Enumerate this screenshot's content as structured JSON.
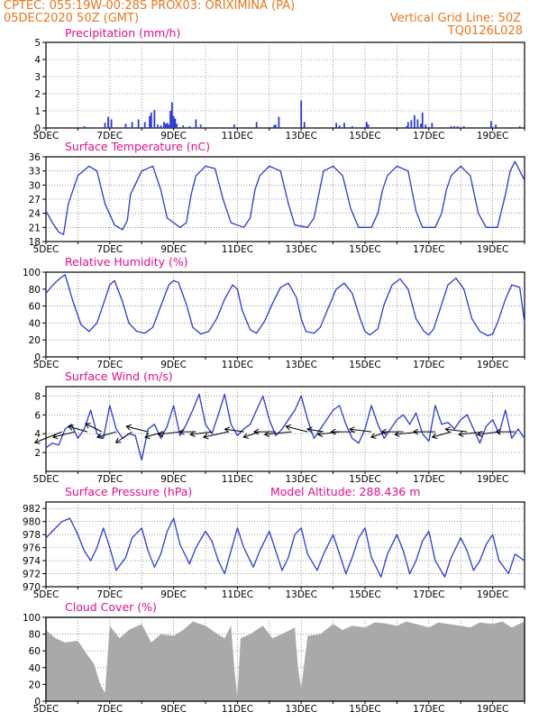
{
  "header": {
    "left_line1": "CPTEC:   055:19W-00:28S   PROX03: ORIXIMINA (PA)",
    "left_line2": "05DEC2020 50Z (GMT)",
    "right_line2": "Vertical Grid Line: 50Z",
    "right_line3": "TQ0126L028"
  },
  "colors": {
    "header": "#e8761c",
    "title": "#e0108c",
    "series": "#2a3ad6",
    "cloud": "#a9a9a9",
    "arrow": "#000000"
  },
  "x_axis": {
    "labels": [
      "5DEC",
      "7DEC",
      "9DEC",
      "11DEC",
      "13DEC",
      "15DEC",
      "17DEC",
      "19DEC"
    ],
    "label_days": [
      5,
      7,
      9,
      11,
      13,
      15,
      17,
      19
    ],
    "range_days": [
      5,
      20
    ]
  },
  "chart_data": [
    {
      "id": "precip",
      "type": "bar",
      "title": "Precipitation (mm/h)",
      "ylim": [
        0,
        5
      ],
      "yticks": [
        0,
        1,
        2,
        3,
        4,
        5
      ],
      "x_days": [
        6.2,
        6.85,
        6.95,
        7.05,
        7.5,
        7.7,
        7.9,
        8.1,
        8.25,
        8.3,
        8.4,
        8.5,
        8.6,
        8.7,
        8.75,
        8.8,
        8.85,
        8.9,
        8.95,
        9.0,
        9.05,
        9.1,
        9.3,
        9.5,
        9.7,
        9.85,
        10.9,
        11.6,
        12.15,
        12.2,
        12.3,
        13.0,
        13.1,
        14.1,
        14.2,
        14.35,
        14.6,
        15.05,
        15.1,
        16.3,
        16.35,
        16.45,
        16.55,
        16.65,
        16.75,
        16.8,
        16.9,
        17.1,
        17.7,
        17.8,
        17.9,
        18.1,
        18.95,
        19.1,
        19.85
      ],
      "values": [
        0.1,
        0.3,
        0.65,
        0.5,
        0.25,
        0.35,
        0.5,
        0.35,
        0.7,
        0.9,
        1.05,
        0.2,
        0.15,
        0.35,
        0.25,
        0.3,
        0.2,
        1.0,
        1.5,
        0.7,
        0.55,
        0.25,
        0.15,
        0.1,
        0.5,
        0.2,
        0.2,
        0.35,
        0.15,
        0.2,
        0.65,
        1.6,
        0.35,
        0.3,
        0.15,
        0.3,
        0.1,
        0.35,
        0.2,
        0.1,
        0.35,
        0.45,
        0.75,
        0.5,
        0.25,
        0.9,
        0.2,
        0.3,
        0.1,
        0.1,
        0.1,
        0.1,
        0.4,
        0.2,
        0.1
      ]
    },
    {
      "id": "temperature",
      "type": "line",
      "title": "Surface Temperature (nC)",
      "ylim": [
        18,
        36
      ],
      "yticks": [
        18,
        21,
        24,
        27,
        30,
        33,
        36
      ],
      "x_days": [
        5.0,
        5.2,
        5.4,
        5.55,
        5.7,
        6.0,
        6.35,
        6.6,
        6.85,
        7.15,
        7.4,
        7.55,
        7.65,
        8.0,
        8.35,
        8.6,
        8.8,
        9.2,
        9.4,
        9.55,
        9.7,
        10.0,
        10.3,
        10.55,
        10.8,
        11.2,
        11.4,
        11.55,
        11.7,
        12.0,
        12.35,
        12.6,
        12.8,
        13.2,
        13.4,
        13.55,
        13.7,
        14.0,
        14.3,
        14.55,
        14.8,
        15.2,
        15.4,
        15.55,
        15.7,
        16.0,
        16.35,
        16.6,
        16.8,
        17.2,
        17.4,
        17.55,
        17.7,
        18.0,
        18.3,
        18.55,
        18.8,
        19.15,
        19.4,
        19.55,
        19.7,
        20.0
      ],
      "values": [
        24.5,
        22,
        20,
        19.5,
        26,
        32,
        34,
        33,
        26,
        21.5,
        20.5,
        22.5,
        28,
        33,
        34,
        29,
        23,
        21,
        22,
        28,
        32,
        34,
        33.5,
        27,
        22,
        21,
        23,
        29,
        32,
        34,
        33,
        26,
        21.5,
        21,
        23,
        28,
        33,
        34,
        32,
        25,
        21,
        21,
        24,
        29,
        32,
        34,
        33,
        24.5,
        21,
        21,
        24,
        29,
        32,
        34,
        32,
        24,
        21,
        21,
        28,
        33,
        35,
        31
      ]
    },
    {
      "id": "humidity",
      "type": "line",
      "title": "Relative Humidity (%)",
      "ylim": [
        0,
        100
      ],
      "yticks": [
        0,
        20,
        40,
        60,
        80,
        100
      ],
      "x_days": [
        5.0,
        5.15,
        5.3,
        5.45,
        5.6,
        5.85,
        6.1,
        6.35,
        6.6,
        6.85,
        7.0,
        7.15,
        7.4,
        7.6,
        7.85,
        8.1,
        8.35,
        8.6,
        8.85,
        9.0,
        9.15,
        9.4,
        9.6,
        9.85,
        10.1,
        10.35,
        10.6,
        10.85,
        11.0,
        11.15,
        11.4,
        11.6,
        11.85,
        12.1,
        12.35,
        12.6,
        12.85,
        13.0,
        13.15,
        13.4,
        13.6,
        13.85,
        14.1,
        14.35,
        14.6,
        14.85,
        15.0,
        15.15,
        15.4,
        15.6,
        15.85,
        16.1,
        16.35,
        16.6,
        16.85,
        17.0,
        17.15,
        17.4,
        17.6,
        17.85,
        18.1,
        18.35,
        18.6,
        18.85,
        19.0,
        19.15,
        19.4,
        19.6,
        19.85,
        20.0
      ],
      "values": [
        75,
        82,
        88,
        93,
        97,
        65,
        38,
        30,
        40,
        68,
        85,
        90,
        65,
        40,
        30,
        28,
        35,
        60,
        85,
        90,
        88,
        62,
        35,
        27,
        30,
        45,
        68,
        85,
        80,
        55,
        32,
        28,
        42,
        63,
        82,
        87,
        70,
        45,
        30,
        28,
        35,
        58,
        80,
        87,
        75,
        45,
        30,
        26,
        33,
        62,
        85,
        92,
        80,
        45,
        30,
        26,
        33,
        62,
        85,
        93,
        80,
        45,
        30,
        25,
        27,
        40,
        68,
        85,
        82,
        40
      ]
    },
    {
      "id": "wind",
      "type": "line",
      "title": "Surface Wind (m/s)",
      "ylim": [
        0,
        9
      ],
      "yticks": [
        2,
        4,
        6,
        8
      ],
      "x_days": [
        5.0,
        5.2,
        5.4,
        5.6,
        5.8,
        6.0,
        6.2,
        6.4,
        6.6,
        6.8,
        7.0,
        7.2,
        7.4,
        7.6,
        7.8,
        8.0,
        8.2,
        8.4,
        8.6,
        8.8,
        9.0,
        9.2,
        9.4,
        9.6,
        9.8,
        10.0,
        10.2,
        10.4,
        10.6,
        10.8,
        11.0,
        11.2,
        11.4,
        11.6,
        11.8,
        12.0,
        12.2,
        12.4,
        12.6,
        12.8,
        13.0,
        13.2,
        13.4,
        13.6,
        13.8,
        14.0,
        14.2,
        14.4,
        14.6,
        14.8,
        15.0,
        15.2,
        15.4,
        15.6,
        15.8,
        16.0,
        16.2,
        16.4,
        16.6,
        16.8,
        17.0,
        17.2,
        17.4,
        17.6,
        17.8,
        18.0,
        18.2,
        18.4,
        18.6,
        18.8,
        19.0,
        19.2,
        19.4,
        19.6,
        19.8,
        20.0
      ],
      "values": [
        2.5,
        3.0,
        2.8,
        4.5,
        5.0,
        3.5,
        4.5,
        6.5,
        4.0,
        3.5,
        7.0,
        4.5,
        3.5,
        4.0,
        3.8,
        1.2,
        4.5,
        5.0,
        3.5,
        4.8,
        7.0,
        3.8,
        5.0,
        6.5,
        8.2,
        5.0,
        4.0,
        6.0,
        8.2,
        5.0,
        3.8,
        4.5,
        5.0,
        6.5,
        8.0,
        5.5,
        3.8,
        4.5,
        5.5,
        6.5,
        8.0,
        5.5,
        3.5,
        4.5,
        5.5,
        6.5,
        7.0,
        5.0,
        3.5,
        3.0,
        4.5,
        7.0,
        5.0,
        3.5,
        4.5,
        5.5,
        6.0,
        5.0,
        6.2,
        4.0,
        3.2,
        7.0,
        5.0,
        5.2,
        4.5,
        5.5,
        6.0,
        4.5,
        3.0,
        4.8,
        5.5,
        4.0,
        6.5,
        3.5,
        4.5,
        3.5
      ]
    },
    {
      "id": "pressure",
      "type": "line",
      "title": "Surface Pressure (hPa)",
      "annotation": "Model Altitude: 288.436 m",
      "ylim": [
        970,
        983
      ],
      "yticks": [
        970,
        972,
        974,
        976,
        978,
        980,
        982
      ],
      "x_days": [
        5.0,
        5.2,
        5.5,
        5.75,
        6.0,
        6.2,
        6.4,
        6.6,
        6.8,
        7.0,
        7.2,
        7.5,
        7.7,
        8.0,
        8.2,
        8.4,
        8.6,
        8.8,
        9.0,
        9.2,
        9.5,
        9.7,
        10.0,
        10.2,
        10.4,
        10.6,
        10.8,
        11.0,
        11.2,
        11.5,
        11.7,
        12.0,
        12.2,
        12.4,
        12.6,
        12.8,
        13.0,
        13.2,
        13.5,
        13.7,
        14.0,
        14.2,
        14.4,
        14.6,
        14.8,
        15.0,
        15.2,
        15.5,
        15.7,
        16.0,
        16.2,
        16.4,
        16.6,
        16.8,
        17.0,
        17.2,
        17.5,
        17.7,
        18.0,
        18.2,
        18.4,
        18.6,
        18.8,
        19.0,
        19.2,
        19.5,
        19.7,
        20.0
      ],
      "values": [
        977.5,
        978.5,
        980.0,
        980.5,
        978.0,
        975.5,
        974.0,
        976.0,
        979.0,
        976.0,
        972.5,
        974.5,
        977.5,
        979.0,
        975.5,
        973.0,
        975.0,
        978.5,
        980.5,
        976.5,
        973.5,
        976.0,
        978.5,
        977.0,
        974.0,
        972.0,
        975.5,
        979.0,
        976.0,
        973.0,
        975.5,
        978.5,
        975.5,
        972.5,
        974.5,
        978.0,
        979.0,
        975.0,
        972.5,
        975.0,
        978.0,
        975.0,
        972.0,
        974.5,
        977.5,
        979.0,
        974.5,
        971.5,
        975.0,
        978.0,
        975.5,
        972.0,
        974.0,
        977.0,
        978.5,
        974.0,
        971.5,
        974.5,
        977.5,
        975.5,
        972.5,
        974.0,
        976.5,
        978.0,
        974.0,
        972.0,
        975.0,
        974.0
      ]
    },
    {
      "id": "cloud",
      "type": "area",
      "title": "Cloud Cover (%)",
      "ylim": [
        0,
        100
      ],
      "yticks": [
        0,
        20,
        40,
        60,
        80,
        100
      ],
      "x_days": [
        5.0,
        5.3,
        5.6,
        6.0,
        6.3,
        6.5,
        6.7,
        6.85,
        7.0,
        7.3,
        7.6,
        8.0,
        8.3,
        8.6,
        9.0,
        9.3,
        9.6,
        10.0,
        10.3,
        10.6,
        10.8,
        10.9,
        11.0,
        11.1,
        11.4,
        11.8,
        12.1,
        12.5,
        12.8,
        12.9,
        13.0,
        13.2,
        13.6,
        14.0,
        14.3,
        14.6,
        15.0,
        15.3,
        15.6,
        16.0,
        16.3,
        16.6,
        17.0,
        17.3,
        17.6,
        18.0,
        18.3,
        18.6,
        19.0,
        19.3,
        19.6,
        20.0
      ],
      "values": [
        85,
        75,
        70,
        72,
        55,
        45,
        20,
        10,
        90,
        75,
        85,
        92,
        70,
        80,
        78,
        85,
        95,
        90,
        82,
        75,
        90,
        40,
        5,
        75,
        80,
        90,
        75,
        82,
        88,
        40,
        15,
        78,
        80,
        92,
        85,
        90,
        88,
        94,
        93,
        90,
        95,
        92,
        88,
        94,
        92,
        90,
        88,
        94,
        92,
        95,
        88,
        95
      ]
    },
    {
      "id": "wind-vectors",
      "type": "scatter",
      "x_days": [
        5.5,
        5.9,
        6.3,
        6.75,
        7.2,
        7.7,
        8.2,
        8.7,
        9.2,
        9.7,
        10.2,
        10.7,
        11.2,
        11.7,
        12.2,
        12.7,
        13.2,
        13.7,
        14.2,
        14.7,
        15.2,
        15.7,
        16.2,
        16.7,
        17.2,
        17.7,
        18.2,
        18.7,
        19.2,
        19.7
      ],
      "u": [
        -5,
        -4,
        -3.5,
        -3,
        -3.5,
        -3,
        -4,
        -3.5,
        -4,
        -3,
        -4,
        -4.5,
        -3.5,
        -3,
        -4,
        -5,
        -4,
        -3,
        -4,
        -4.5,
        -4,
        -3,
        -4,
        -4.5,
        -4,
        -3.5,
        -4,
        -4.5,
        -4,
        -3.5
      ],
      "v": [
        -2,
        -1,
        1,
        1.5,
        -1,
        -2,
        1,
        -1,
        -0.5,
        0,
        -0.5,
        -1,
        0.5,
        -1,
        0,
        -0.5,
        1,
        0.5,
        -0.5,
        0,
        0.5,
        -1,
        0,
        -0.5,
        0,
        -1,
        0.5,
        -0.5,
        -0.5,
        0
      ]
    }
  ]
}
